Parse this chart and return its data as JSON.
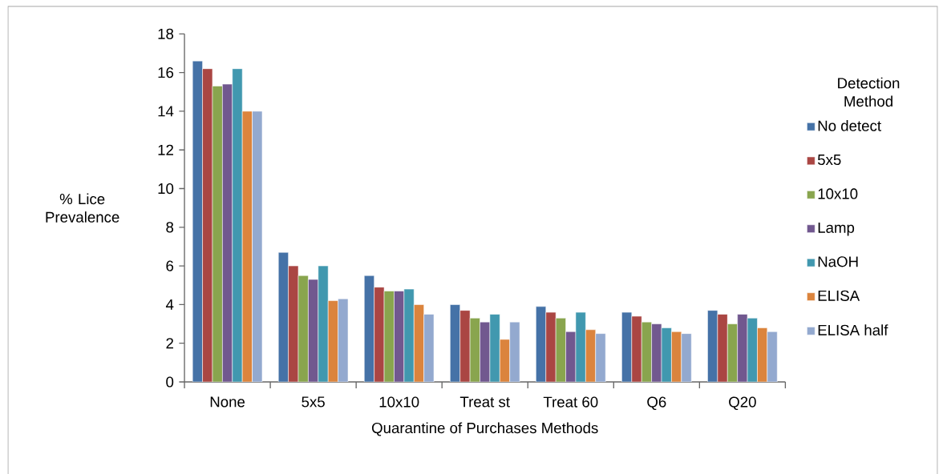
{
  "chart_data": {
    "type": "bar",
    "categories": [
      "None",
      "5x5",
      "10x10",
      "Treat st",
      "Treat 60",
      "Q6",
      "Q20"
    ],
    "xlabel": "Quarantine of Purchases Methods",
    "ylabel": "% Lice Prevalence",
    "legend_title": "Detection Method",
    "ylim": [
      0,
      18
    ],
    "yticks": [
      0,
      2,
      4,
      6,
      8,
      10,
      12,
      14,
      16,
      18
    ],
    "legend": "right",
    "grid": false,
    "series": [
      {
        "name": "No detect",
        "color": "#4572a7",
        "values": [
          16.6,
          6.7,
          5.5,
          4.0,
          3.9,
          3.6,
          3.7
        ]
      },
      {
        "name": "5x5",
        "color": "#aa4643",
        "values": [
          16.2,
          6.0,
          4.9,
          3.7,
          3.6,
          3.4,
          3.5
        ]
      },
      {
        "name": "10x10",
        "color": "#89a54e",
        "values": [
          15.3,
          5.5,
          4.7,
          3.3,
          3.3,
          3.1,
          3.0
        ]
      },
      {
        "name": "Lamp",
        "color": "#71588f",
        "values": [
          15.4,
          5.3,
          4.7,
          3.1,
          2.6,
          3.0,
          3.5
        ]
      },
      {
        "name": "NaOH",
        "color": "#4198af",
        "values": [
          16.2,
          6.0,
          4.8,
          3.5,
          3.6,
          2.8,
          3.3
        ]
      },
      {
        "name": "ELISA",
        "color": "#db843d",
        "values": [
          14.0,
          4.2,
          4.0,
          2.2,
          2.7,
          2.6,
          2.8
        ]
      },
      {
        "name": "ELISA half",
        "color": "#93a9cf",
        "values": [
          14.0,
          4.3,
          3.5,
          3.1,
          2.5,
          2.5,
          2.6
        ]
      }
    ]
  }
}
